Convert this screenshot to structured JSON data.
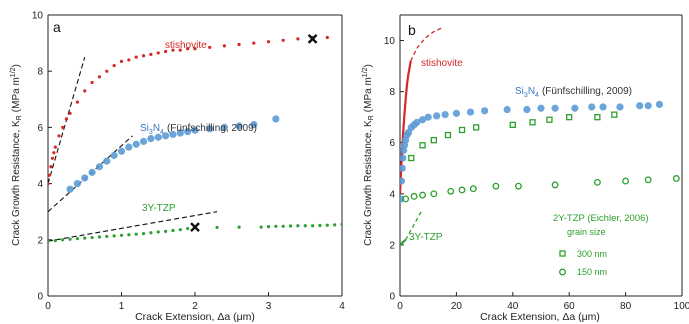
{
  "chart_data": [
    {
      "type": "scatter",
      "panel_label": "a",
      "xlabel": "Crack Extension, Δa (μm)",
      "ylabel": "Crack Growth Resistance, K",
      "ylabel_sub": "R",
      "ylabel_unit": "(MPa m",
      "ylabel_exp": "1/2",
      "ylabel_close": ")",
      "xlim": [
        0,
        4
      ],
      "ylim": [
        0,
        10
      ],
      "xticks": [
        "0",
        "1",
        "2",
        "3",
        "4"
      ],
      "yticks": [
        "0",
        "2",
        "4",
        "6",
        "8",
        "10"
      ],
      "grid": false,
      "series": [
        {
          "name": "stishovite",
          "color": "#d62728",
          "marker": "small-dot",
          "x": [
            0.0,
            0.02,
            0.04,
            0.06,
            0.08,
            0.1,
            0.15,
            0.2,
            0.25,
            0.3,
            0.4,
            0.5,
            0.6,
            0.7,
            0.8,
            0.9,
            1.0,
            1.1,
            1.2,
            1.3,
            1.4,
            1.5,
            1.6,
            1.7,
            1.8,
            1.9,
            2.0,
            2.2,
            2.4,
            2.6,
            2.8,
            3.0,
            3.2,
            3.4,
            3.6,
            3.8
          ],
          "y": [
            4.0,
            4.3,
            4.6,
            4.9,
            5.1,
            5.3,
            5.7,
            6.0,
            6.3,
            6.5,
            6.9,
            7.3,
            7.6,
            7.8,
            8.0,
            8.2,
            8.35,
            8.4,
            8.5,
            8.55,
            8.6,
            8.65,
            8.7,
            8.75,
            8.75,
            8.8,
            8.8,
            8.85,
            8.9,
            8.95,
            9.0,
            9.05,
            9.1,
            9.15,
            9.2,
            9.2
          ]
        },
        {
          "name": "Si3N4",
          "label_main": "Si",
          "label_sub1": "3",
          "label_n": "N",
          "label_sub2": "4",
          "label_ref": "(Fünfschilling, 2009)",
          "color": "#5b9bd5",
          "marker": "circle",
          "x": [
            0.3,
            0.4,
            0.5,
            0.6,
            0.7,
            0.8,
            0.9,
            1.0,
            1.1,
            1.2,
            1.3,
            1.4,
            1.5,
            1.6,
            1.7,
            1.8,
            1.9,
            2.0,
            2.2,
            2.4,
            2.6,
            2.8,
            3.1
          ],
          "y": [
            3.8,
            4.0,
            4.2,
            4.4,
            4.6,
            4.8,
            5.0,
            5.15,
            5.3,
            5.4,
            5.5,
            5.6,
            5.65,
            5.7,
            5.75,
            5.8,
            5.85,
            5.9,
            5.95,
            6.0,
            6.05,
            6.1,
            6.3
          ]
        },
        {
          "name": "3Y-TZP",
          "color": "#2ca02c",
          "marker": "small-dot",
          "x": [
            0.0,
            0.1,
            0.2,
            0.3,
            0.4,
            0.5,
            0.6,
            0.7,
            0.8,
            0.9,
            1.0,
            1.1,
            1.2,
            1.3,
            1.4,
            1.5,
            1.6,
            1.7,
            1.8,
            1.9,
            2.0,
            2.3,
            2.6,
            2.9,
            3.0,
            3.1,
            3.2,
            3.3,
            3.4,
            3.5,
            3.6,
            3.7,
            3.8,
            3.9,
            4.0
          ],
          "y": [
            1.95,
            1.97,
            2.0,
            2.02,
            2.04,
            2.06,
            2.08,
            2.1,
            2.12,
            2.14,
            2.16,
            2.18,
            2.2,
            2.22,
            2.25,
            2.28,
            2.3,
            2.33,
            2.36,
            2.4,
            2.44,
            2.44,
            2.45,
            2.45,
            2.47,
            2.48,
            2.48,
            2.49,
            2.5,
            2.5,
            2.5,
            2.51,
            2.52,
            2.53,
            2.55
          ]
        }
      ],
      "dashed_lines": [
        {
          "x": [
            0.0,
            0.5
          ],
          "y": [
            4.0,
            8.5
          ]
        },
        {
          "x": [
            0.0,
            1.15
          ],
          "y": [
            3.0,
            5.7
          ]
        },
        {
          "x": [
            0.0,
            2.3
          ],
          "y": [
            1.95,
            3.0
          ]
        }
      ],
      "markers_x": [
        {
          "x": 3.6,
          "y": 9.15
        },
        {
          "x": 2.0,
          "y": 2.45
        }
      ]
    },
    {
      "type": "scatter",
      "panel_label": "b",
      "xlabel": "Crack Extension, Δa (μm)",
      "ylabel": "Crack Growth Resistance, K",
      "ylabel_sub": "R",
      "ylabel_unit": "(MPa m",
      "ylabel_exp": "1/2",
      "ylabel_close": ")",
      "xlim": [
        0,
        100
      ],
      "ylim": [
        0,
        11
      ],
      "xticks": [
        "0",
        "20",
        "40",
        "60",
        "80",
        "100"
      ],
      "yticks": [
        "0",
        "2",
        "4",
        "6",
        "8",
        "10"
      ],
      "grid": false,
      "legend_title": "2Y-TZP (Eichler, 2006)",
      "legend_subtitle": "grain size",
      "legend_placement": "bottom-right",
      "series": [
        {
          "name": "stishovite",
          "color": "#d62728",
          "marker": "line",
          "x": [
            0.0,
            0.5,
            1.0,
            1.5,
            2.0,
            2.5,
            3.0,
            3.5,
            3.8
          ],
          "y": [
            4.0,
            5.2,
            6.2,
            7.0,
            7.7,
            8.3,
            8.7,
            9.0,
            9.2
          ],
          "extrapolation": {
            "x": [
              3.8,
              6,
              9,
              12,
              15
            ],
            "y": [
              9.2,
              9.7,
              10.1,
              10.35,
              10.5
            ]
          }
        },
        {
          "name": "Si3N4",
          "label_main": "Si",
          "label_sub1": "3",
          "label_n": "N",
          "label_sub2": "4",
          "label_ref": "(Fünfschilling, 2009)",
          "color": "#5b9bd5",
          "marker": "circle",
          "x": [
            0.3,
            0.5,
            0.8,
            1.0,
            1.3,
            1.6,
            2.0,
            2.5,
            3.0,
            4.0,
            5.0,
            6.0,
            8.0,
            10.0,
            13.0,
            16.0,
            20.0,
            25.0,
            30.0,
            38.0,
            45.0,
            50.0,
            55.0,
            62.0,
            68.0,
            72.0,
            78.0,
            85.0,
            88.0,
            92.0
          ],
          "y": [
            3.8,
            4.5,
            5.0,
            5.4,
            5.7,
            5.9,
            6.1,
            6.3,
            6.4,
            6.6,
            6.7,
            6.8,
            6.9,
            7.0,
            7.05,
            7.1,
            7.15,
            7.2,
            7.25,
            7.3,
            7.3,
            7.35,
            7.35,
            7.35,
            7.4,
            7.4,
            7.4,
            7.45,
            7.45,
            7.5
          ]
        },
        {
          "name": "300 nm",
          "color": "#2ca02c",
          "marker": "square-open",
          "x": [
            4,
            8,
            12,
            17,
            22,
            27,
            40,
            47,
            53,
            60,
            70,
            76
          ],
          "y": [
            5.4,
            5.9,
            6.1,
            6.3,
            6.5,
            6.6,
            6.7,
            6.8,
            6.9,
            7.0,
            7.0,
            7.1
          ]
        },
        {
          "name": "150 nm",
          "color": "#2ca02c",
          "marker": "circle-open",
          "x": [
            2,
            5,
            8,
            12,
            18,
            22,
            26,
            34,
            42,
            55,
            70,
            80,
            88,
            98
          ],
          "y": [
            3.8,
            3.9,
            3.95,
            4.0,
            4.1,
            4.15,
            4.2,
            4.3,
            4.3,
            4.35,
            4.45,
            4.5,
            4.55,
            4.6
          ]
        },
        {
          "name": "3Y-TZP",
          "color": "#2ca02c",
          "marker": "line",
          "x": [
            0.0,
            0.5,
            1.0,
            1.5,
            2.0
          ],
          "y": [
            2.0,
            2.05,
            2.1,
            2.15,
            2.2
          ],
          "extrapolation": {
            "x": [
              2.0,
              4,
              6,
              8
            ],
            "y": [
              2.2,
              2.6,
              3.0,
              3.4
            ]
          }
        }
      ]
    }
  ]
}
